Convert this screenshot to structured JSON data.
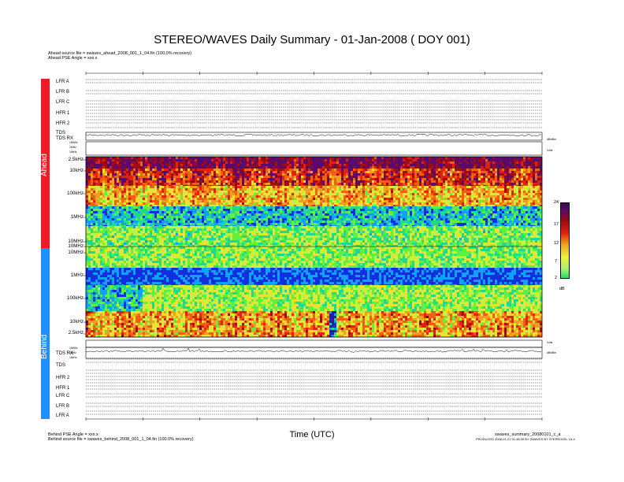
{
  "chart_data": {
    "type": "heatmap",
    "title": "STEREO/WAVES Daily Summary - 01-Jan-2008 ( DOY 001)",
    "xlabel": "Time (UTC)",
    "ylabel": "",
    "colorbar": {
      "unit": "dB",
      "ticks": [
        "24",
        "17",
        "12",
        "7",
        "2"
      ],
      "range": [
        2,
        24
      ],
      "colors": [
        "#20e060",
        "#f0f040",
        "#f0a020",
        "#e02010",
        "#9a0c0c",
        "#3a0a4a"
      ]
    },
    "panels": [
      {
        "name": "Ahead",
        "frequency_ticks": [
          "2.5kHz",
          "10kHz",
          "100kHz",
          "1MHz",
          "10MHz"
        ],
        "ylim_hz": [
          2500,
          16000000
        ]
      },
      {
        "name": "Behind",
        "frequency_ticks": [
          "10MHz",
          "1MHz",
          "100kHz",
          "10kHz",
          "2.5kHz"
        ],
        "ylim_hz": [
          2500,
          16000000
        ]
      }
    ],
    "band_ticks_between": [
      "10MHz",
      "1MHz",
      "10MHz"
    ],
    "lfr_mini_axis": [
      "16MHz",
      "1MHz",
      "16kHz"
    ]
  },
  "header": {
    "ahead_source": "Ahead source file = swaves_ahead_2008_001_1_04.fin (100.0% recovery)",
    "ahead_pse": "Ahead PSE Angle = xxx.x"
  },
  "footer": {
    "behind_pse": "Behind PSE Angle = xxx.x",
    "behind_source": "Behind source file = swaves_behind_2008_001_1_04.fin (100.0% recovery)",
    "product": "swaves_summary_20080101_c_a",
    "produced": "PRODUCED 2008-01-21 01:48:00 BY SWAVES BY STEREO/IDL V4.4"
  },
  "sidebar": {
    "ahead_label": "Ahead",
    "behind_label": "Behind",
    "ahead_color": "#ee1c24",
    "behind_color": "#1e90ff"
  },
  "ahead_rows": [
    "LFR A",
    "LFR B",
    "LFR C",
    "HFR 1",
    "HFR 2",
    "TDS",
    "TDS RX"
  ],
  "behind_rows": [
    "TDS RX",
    "TDS",
    "HFR 2",
    "HFR 1",
    "LFR C",
    "LFR B",
    "LFR A"
  ],
  "status_right": {
    "volts": "Volts",
    "db": "dB/dBm"
  }
}
